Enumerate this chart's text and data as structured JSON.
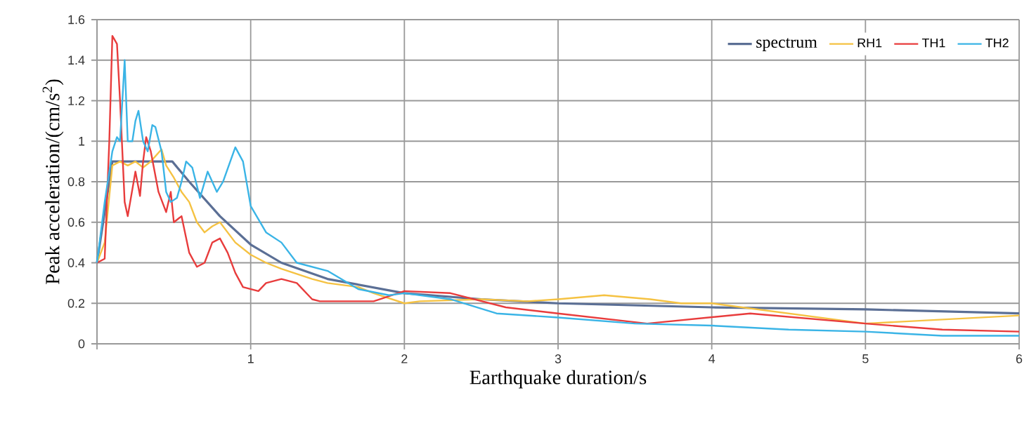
{
  "chart_data": {
    "type": "line",
    "xlabel": "Earthquake duration/s",
    "ylabel": "Peak acceleration/(cm/s$^{2}$)",
    "xlim": [
      0,
      6
    ],
    "xticks": [
      {
        "value": 0,
        "label": null
      },
      1,
      2,
      3,
      4,
      5,
      6
    ],
    "ylim": [
      0,
      1.6
    ],
    "yticks": [
      0,
      0.2,
      0.4,
      0.6,
      0.8,
      1,
      1.2,
      1.4,
      1.6
    ],
    "grid": true,
    "legend": "top right",
    "series": [
      {
        "name": "spectrum",
        "color": "#5b6f95",
        "x": [
          0,
          0.1,
          0.49,
          0.6,
          0.8,
          1.0,
          1.2,
          1.5,
          2.0,
          2.5,
          3.0,
          4.0,
          5.0,
          6.0
        ],
        "values": [
          0.4,
          0.9,
          0.9,
          0.8,
          0.63,
          0.49,
          0.4,
          0.32,
          0.25,
          0.22,
          0.2,
          0.18,
          0.17,
          0.15
        ]
      },
      {
        "name": "RH1",
        "color": "#f5c242",
        "x": [
          0,
          0.05,
          0.1,
          0.15,
          0.2,
          0.25,
          0.3,
          0.35,
          0.42,
          0.45,
          0.5,
          0.55,
          0.6,
          0.65,
          0.7,
          0.75,
          0.8,
          0.9,
          1.0,
          1.1,
          1.2,
          1.4,
          1.5,
          1.7,
          1.8,
          2.0,
          2.1,
          2.5,
          2.8,
          3.0,
          3.3,
          3.6,
          3.8,
          4.0,
          4.5,
          5.0,
          5.5,
          6.0
        ],
        "values": [
          0.4,
          0.5,
          0.88,
          0.9,
          0.88,
          0.9,
          0.87,
          0.9,
          0.96,
          0.88,
          0.82,
          0.75,
          0.7,
          0.6,
          0.55,
          0.58,
          0.6,
          0.5,
          0.44,
          0.4,
          0.37,
          0.32,
          0.3,
          0.28,
          0.25,
          0.2,
          0.21,
          0.22,
          0.21,
          0.22,
          0.24,
          0.22,
          0.2,
          0.2,
          0.15,
          0.1,
          0.12,
          0.14
        ]
      },
      {
        "name": "TH1",
        "color": "#e83c3c",
        "x": [
          0,
          0.05,
          0.08,
          0.1,
          0.13,
          0.15,
          0.18,
          0.2,
          0.25,
          0.28,
          0.3,
          0.32,
          0.35,
          0.4,
          0.45,
          0.48,
          0.5,
          0.55,
          0.6,
          0.65,
          0.7,
          0.75,
          0.8,
          0.85,
          0.9,
          0.95,
          1.05,
          1.1,
          1.2,
          1.3,
          1.4,
          1.45,
          1.8,
          2.0,
          2.3,
          2.66,
          3.0,
          3.58,
          4.25,
          5.0,
          5.5,
          6.0
        ],
        "values": [
          0.4,
          0.42,
          1.0,
          1.52,
          1.48,
          1.2,
          0.7,
          0.63,
          0.85,
          0.73,
          0.9,
          1.02,
          0.95,
          0.75,
          0.65,
          0.75,
          0.6,
          0.63,
          0.45,
          0.38,
          0.4,
          0.5,
          0.52,
          0.45,
          0.35,
          0.28,
          0.26,
          0.3,
          0.32,
          0.3,
          0.22,
          0.21,
          0.21,
          0.26,
          0.25,
          0.18,
          0.15,
          0.1,
          0.15,
          0.1,
          0.07,
          0.06
        ]
      },
      {
        "name": "TH2",
        "color": "#3ab4e6",
        "x": [
          0,
          0.05,
          0.1,
          0.13,
          0.15,
          0.18,
          0.2,
          0.23,
          0.25,
          0.27,
          0.3,
          0.33,
          0.36,
          0.38,
          0.42,
          0.45,
          0.48,
          0.52,
          0.55,
          0.58,
          0.62,
          0.67,
          0.72,
          0.78,
          0.82,
          0.9,
          0.95,
          1.0,
          1.1,
          1.2,
          1.3,
          1.4,
          1.5,
          1.7,
          1.9,
          2.0,
          2.3,
          2.6,
          3.0,
          3.5,
          4.0,
          4.5,
          5.0,
          5.5,
          6.0
        ],
        "values": [
          0.4,
          0.7,
          0.95,
          1.02,
          1.0,
          1.4,
          1.0,
          1.0,
          1.1,
          1.15,
          1.0,
          0.95,
          1.08,
          1.07,
          0.95,
          0.75,
          0.7,
          0.72,
          0.8,
          0.9,
          0.87,
          0.72,
          0.85,
          0.75,
          0.8,
          0.97,
          0.9,
          0.68,
          0.55,
          0.5,
          0.4,
          0.38,
          0.36,
          0.27,
          0.24,
          0.25,
          0.22,
          0.15,
          0.13,
          0.1,
          0.09,
          0.07,
          0.06,
          0.04,
          0.04
        ]
      }
    ]
  }
}
